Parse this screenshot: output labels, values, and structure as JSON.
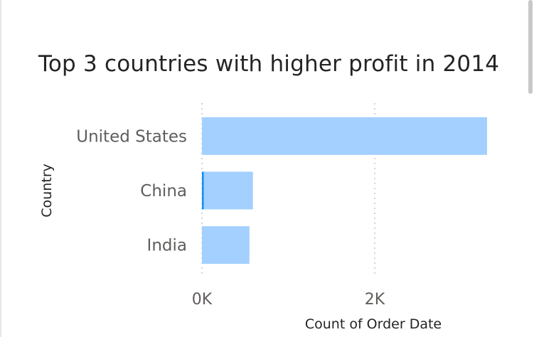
{
  "chart_data": {
    "type": "bar",
    "orientation": "horizontal",
    "title": "Top 3 countries with higher profit in 2014",
    "xlabel": "Count of Order Date",
    "ylabel": "Country",
    "categories": [
      "United States",
      "China",
      "India"
    ],
    "values": [
      3300,
      590,
      550
    ],
    "xlim": [
      0,
      3300
    ],
    "x_ticks": [
      0,
      2000
    ],
    "x_tick_labels": [
      "0K",
      "2K"
    ],
    "grid": true,
    "legend": "none",
    "colors": {
      "bar": "#a3d0ff",
      "highlight": "#118dff",
      "grid": "#c8c6c4"
    }
  }
}
